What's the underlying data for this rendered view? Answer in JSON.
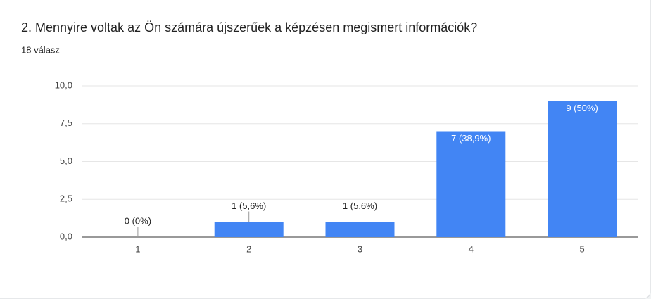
{
  "chart_data": {
    "type": "bar",
    "title": "2. Mennyire voltak az Ön számára újszerűek a képzésen megismert információk?",
    "subtitle": "18 válasz",
    "categories": [
      "1",
      "2",
      "3",
      "4",
      "5"
    ],
    "values": [
      0,
      1,
      1,
      7,
      9
    ],
    "value_labels": [
      "0 (0%)",
      "1 (5,6%)",
      "1 (5,6%)",
      "7 (38,9%)",
      "9 (50%)"
    ],
    "color": "#4285f4",
    "ylim": [
      0,
      10
    ],
    "yticks": [
      {
        "value": 0,
        "label": "0,0"
      },
      {
        "value": 2.5,
        "label": "2,5"
      },
      {
        "value": 5,
        "label": "5,0"
      },
      {
        "value": 7.5,
        "label": "7,5"
      },
      {
        "value": 10,
        "label": "10,0"
      }
    ],
    "grid": true
  }
}
